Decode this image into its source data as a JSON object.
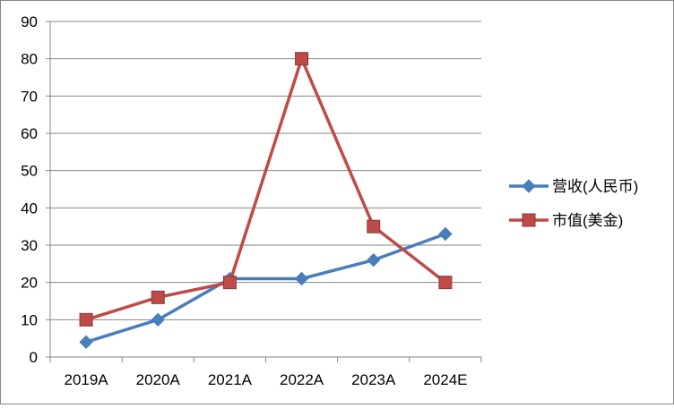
{
  "chart_data": {
    "type": "line",
    "categories": [
      "2019A",
      "2020A",
      "2021A",
      "2022A",
      "2023A",
      "2024E"
    ],
    "series": [
      {
        "name": "营收(人民币)",
        "values": [
          4,
          10,
          21,
          21,
          26,
          33
        ],
        "color": "#4a7ebb",
        "marker": "diamond"
      },
      {
        "name": "市值(美金)",
        "values": [
          10,
          16,
          20,
          80,
          35,
          20
        ],
        "color": "#be4b48",
        "marker": "square"
      }
    ],
    "ylim": [
      0,
      90
    ],
    "yticks": [
      "0",
      "10",
      "20",
      "30",
      "40",
      "50",
      "60",
      "70",
      "80",
      "90"
    ],
    "grid": true,
    "legend": "right"
  }
}
